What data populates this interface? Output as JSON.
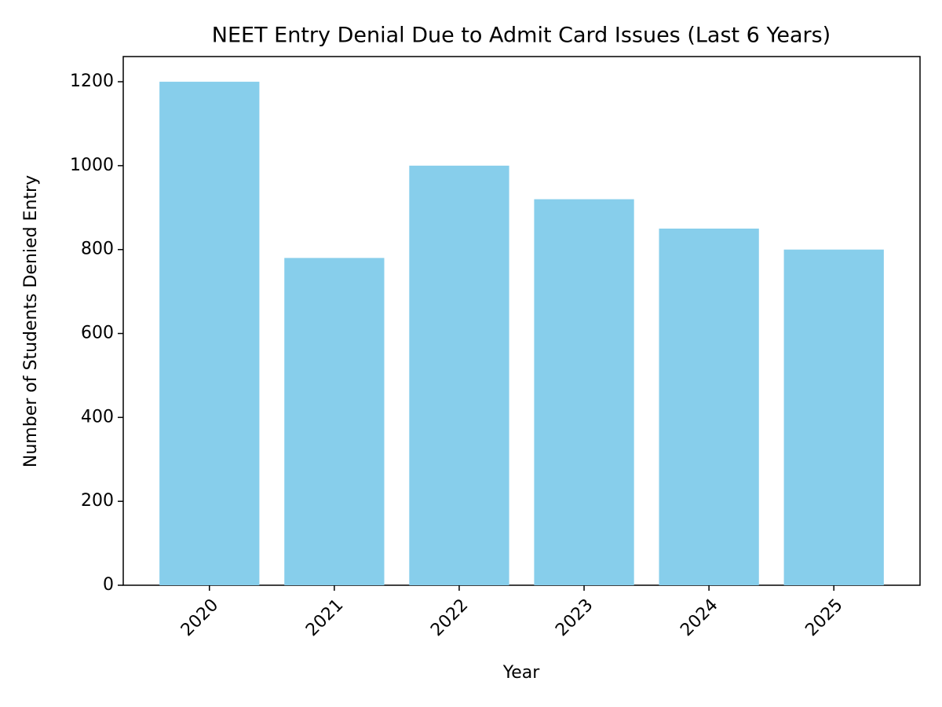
{
  "chart_data": {
    "type": "bar",
    "title": "NEET Entry Denial Due to Admit Card Issues (Last 6 Years)",
    "x_label": "Year",
    "y_label": "Number of Students Denied Entry",
    "categories": [
      "2020",
      "2021",
      "2022",
      "2023",
      "2024",
      "2025"
    ],
    "values": [
      1200,
      780,
      1000,
      920,
      850,
      800
    ],
    "color": "#87ceeb",
    "ylim": [
      0,
      1260
    ],
    "yticks": [
      0,
      200,
      400,
      600,
      800,
      1000,
      1200
    ],
    "grid": false
  }
}
